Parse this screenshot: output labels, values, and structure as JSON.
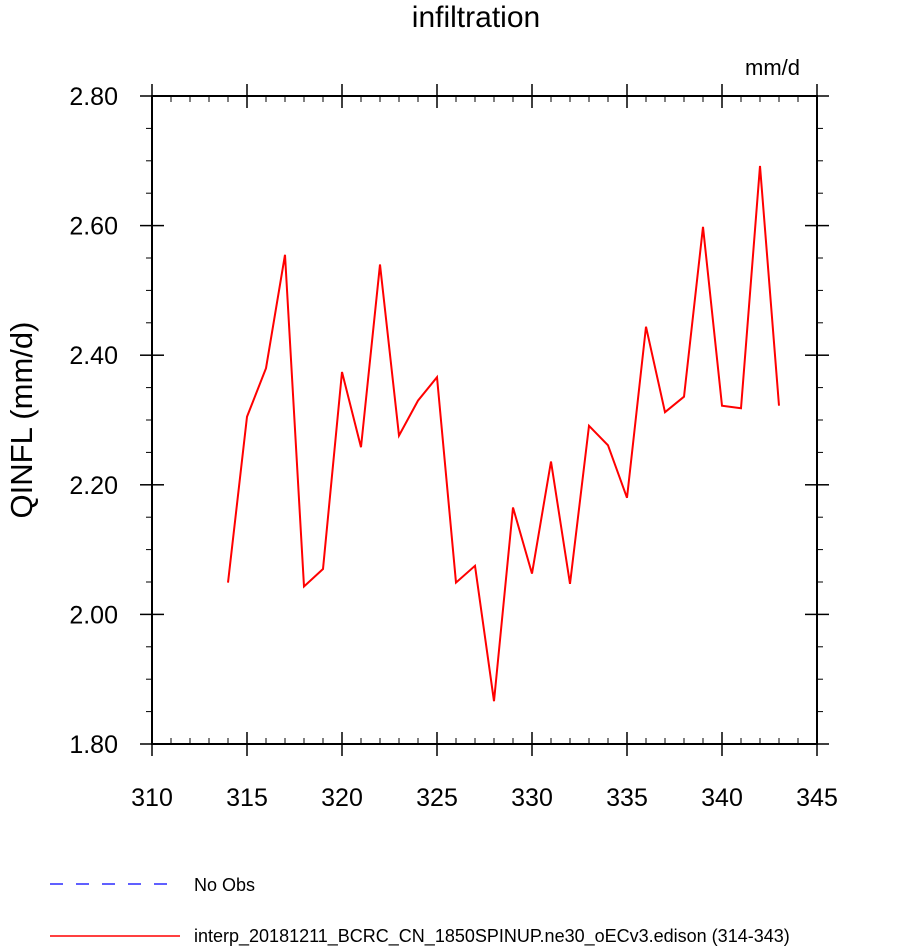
{
  "chart_data": {
    "type": "line",
    "title": "infiltration",
    "ylabel": "QINFL  (mm/d)",
    "units": "mm/d",
    "xlim": [
      310,
      345
    ],
    "ylim": [
      1.8,
      2.8
    ],
    "x_ticks": [
      310,
      315,
      320,
      325,
      330,
      335,
      340,
      345
    ],
    "x_tick_labels": [
      "310",
      "315",
      "320",
      "325",
      "330",
      "335",
      "340",
      "345"
    ],
    "y_ticks": [
      1.8,
      2.0,
      2.2,
      2.4,
      2.6,
      2.8
    ],
    "y_tick_labels": [
      "1.80",
      "2.00",
      "2.20",
      "2.40",
      "2.60",
      "2.80"
    ],
    "series": [
      {
        "name": "interp_20181211_BCRC_CN_1850SPINUP.ne30_oECv3.edison (314-343)",
        "color": "#ff0000",
        "x": [
          314,
          315,
          316,
          317,
          318,
          319,
          320,
          321,
          322,
          323,
          324,
          325,
          326,
          327,
          328,
          329,
          330,
          331,
          332,
          333,
          334,
          335,
          336,
          337,
          338,
          339,
          340,
          341,
          342,
          343
        ],
        "values": [
          2.049,
          2.305,
          2.38,
          2.555,
          2.043,
          2.07,
          2.374,
          2.258,
          2.54,
          2.276,
          2.33,
          2.366,
          2.049,
          2.075,
          1.866,
          2.165,
          2.063,
          2.236,
          2.047,
          2.291,
          2.261,
          2.18,
          2.444,
          2.312,
          2.336,
          2.598,
          2.322,
          2.318,
          2.692,
          2.322
        ]
      }
    ],
    "legend": [
      {
        "label": "No Obs",
        "color": "#0000ff",
        "style": "dashed"
      },
      {
        "label": "interp_20181211_BCRC_CN_1850SPINUP.ne30_oECv3.edison (314-343)",
        "color": "#ff0000",
        "style": "solid"
      }
    ]
  }
}
